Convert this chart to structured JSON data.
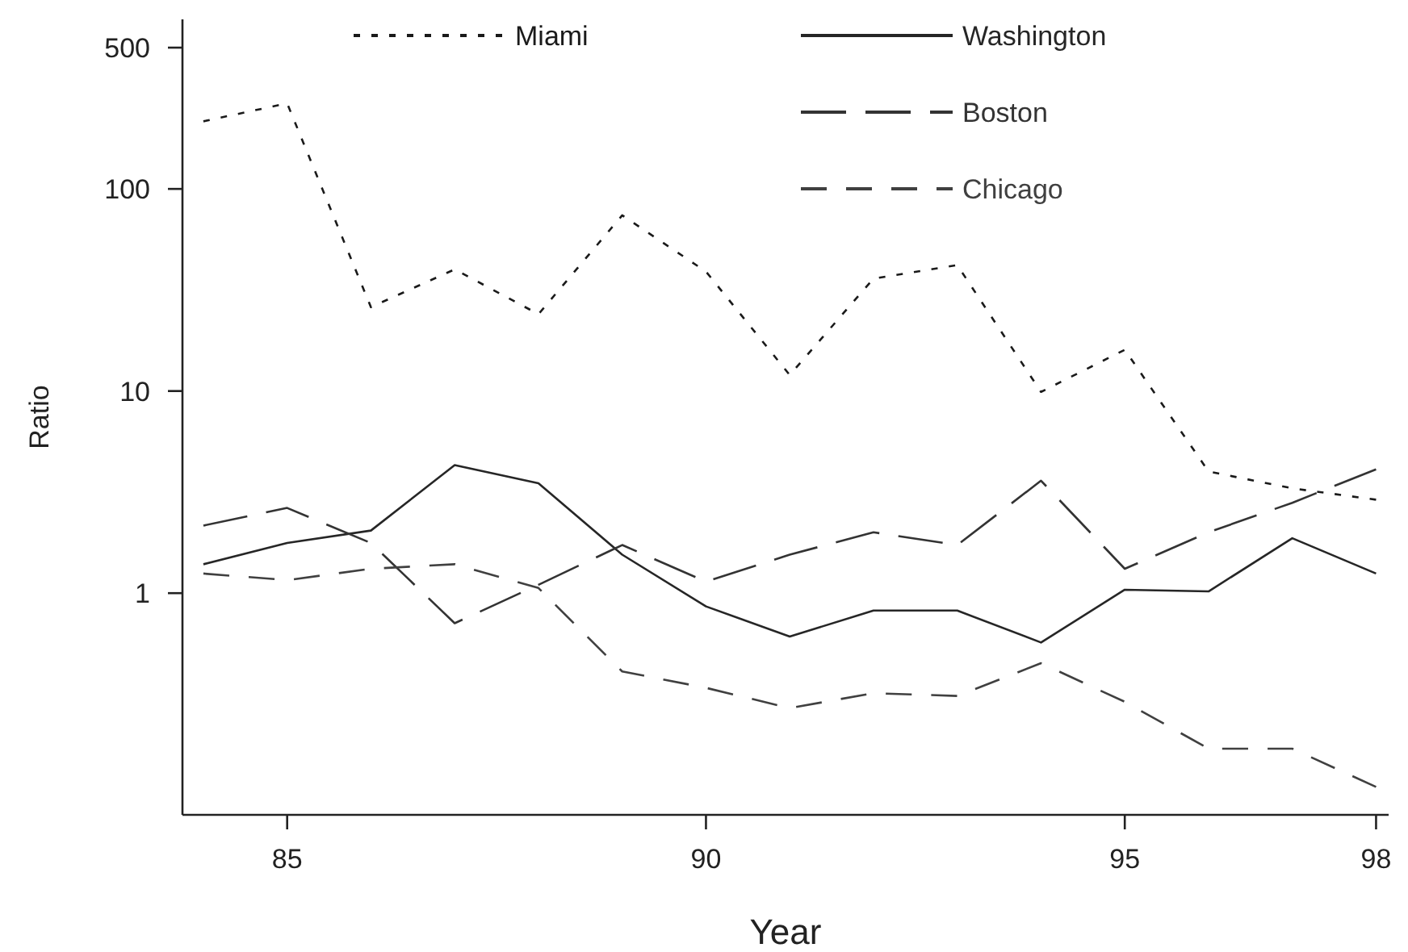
{
  "chart_data": {
    "type": "line",
    "xlabel": "Year",
    "ylabel": "Ratio",
    "log": true,
    "grid": false,
    "legend": "top",
    "marker": "none",
    "x": [
      84,
      85,
      86,
      87,
      88,
      89,
      90,
      91,
      92,
      93,
      94,
      95,
      96,
      97,
      98
    ],
    "xlim": [
      83.75,
      98.15
    ],
    "xticks": [
      85,
      90,
      95,
      98
    ],
    "ylim": [
      0.08,
      690
    ],
    "yticks": [
      1,
      10,
      100,
      500
    ],
    "series": [
      {
        "name": "Miami",
        "color": "#1a1a1a",
        "line_style": "dotted",
        "values": [
          216,
          265,
          26,
          40,
          24,
          74,
          39,
          12,
          36,
          42,
          9.9,
          16,
          4,
          3.3,
          2.9
        ]
      },
      {
        "name": "Washington",
        "color": "#262626",
        "line_style": "solid",
        "values": [
          1.39,
          1.77,
          2.04,
          4.3,
          3.5,
          1.55,
          0.86,
          0.61,
          0.82,
          0.82,
          0.57,
          1.04,
          1.02,
          1.87,
          1.25
        ]
      },
      {
        "name": "Boston",
        "color": "#333333",
        "line_style": "dashed",
        "values": [
          2.16,
          2.64,
          1.77,
          0.71,
          1.1,
          1.73,
          1.14,
          1.55,
          2.0,
          1.73,
          3.6,
          1.32,
          2.0,
          2.8,
          4.1
        ]
      },
      {
        "name": "Chicago",
        "color": "#404040",
        "line_style": "dashed",
        "values": [
          1.25,
          1.16,
          1.32,
          1.39,
          1.06,
          0.41,
          0.34,
          0.27,
          0.32,
          0.31,
          0.45,
          0.29,
          0.17,
          0.17,
          0.11
        ]
      }
    ]
  }
}
